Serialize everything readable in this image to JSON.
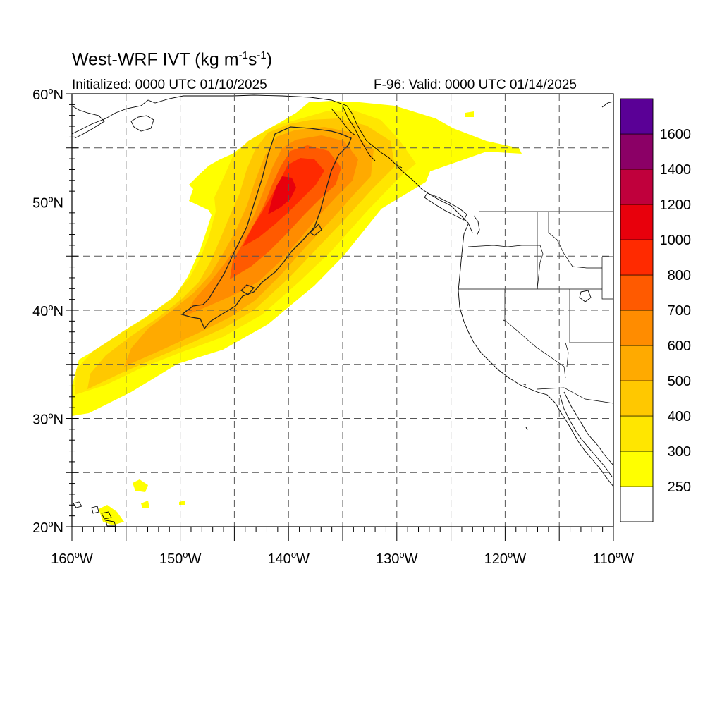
{
  "title": {
    "main": "West-WRF IVT (kg m",
    "exp1": "-1",
    "mid": "s",
    "exp2": "-1",
    "end": ")"
  },
  "initialized_text": "Initialized: 0000 UTC 01/10/2025",
  "valid_text": "F-96: Valid: 0000 UTC 01/14/2025",
  "map": {
    "lon_range": [
      -160,
      -110
    ],
    "lat_range": [
      20,
      60
    ],
    "grid": "dashed",
    "lon_ticks": [
      {
        "value": -160,
        "deg": "160",
        "hemi": "W"
      },
      {
        "value": -150,
        "deg": "150",
        "hemi": "W"
      },
      {
        "value": -140,
        "deg": "140",
        "hemi": "W"
      },
      {
        "value": -130,
        "deg": "130",
        "hemi": "W"
      },
      {
        "value": -120,
        "deg": "120",
        "hemi": "W"
      },
      {
        "value": -110,
        "deg": "110",
        "hemi": "W"
      }
    ],
    "lat_ticks": [
      {
        "value": 60,
        "deg": "60",
        "hemi": "N"
      },
      {
        "value": 50,
        "deg": "50",
        "hemi": "N"
      },
      {
        "value": 40,
        "deg": "40",
        "hemi": "N"
      },
      {
        "value": 30,
        "deg": "30",
        "hemi": "N"
      },
      {
        "value": 20,
        "deg": "20",
        "hemi": "N"
      }
    ]
  },
  "colorbar": {
    "label_values": [
      "250",
      "300",
      "400",
      "500",
      "600",
      "700",
      "800",
      "1000",
      "1200",
      "1400",
      "1600"
    ],
    "bins": [
      {
        "color": "#ffffff"
      },
      {
        "color": "#ffff00"
      },
      {
        "color": "#ffe600"
      },
      {
        "color": "#ffc800"
      },
      {
        "color": "#ffaa00"
      },
      {
        "color": "#ff8c00"
      },
      {
        "color": "#ff5a00"
      },
      {
        "color": "#ff2a00"
      },
      {
        "color": "#e8000c"
      },
      {
        "color": "#c0003c"
      },
      {
        "color": "#8b0066"
      },
      {
        "color": "#5a0096"
      }
    ]
  }
}
